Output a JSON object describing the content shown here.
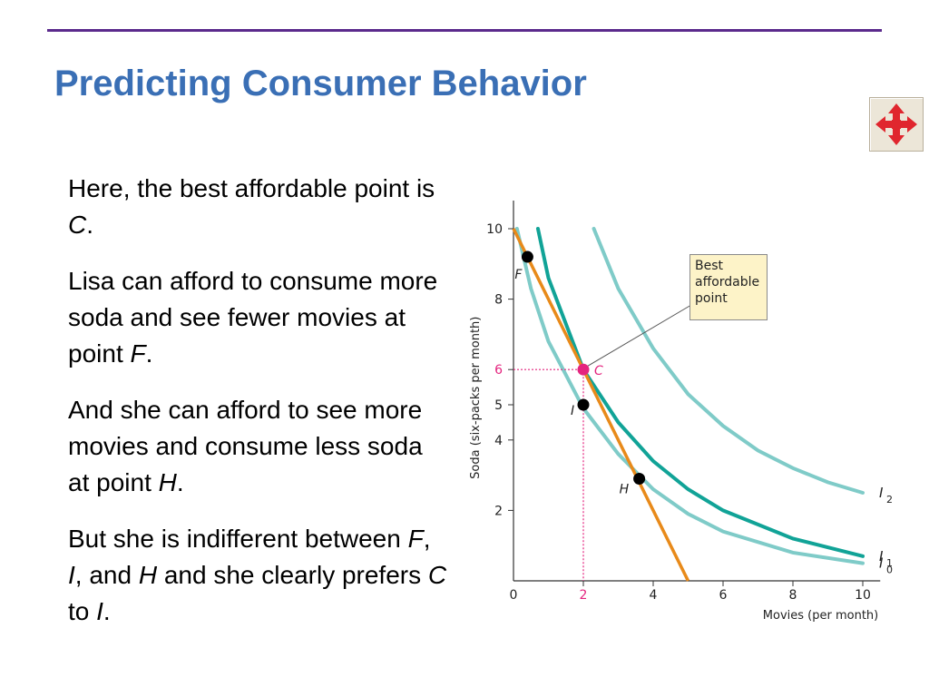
{
  "slide": {
    "title": "Predicting Consumer Behavior"
  },
  "nav": {
    "icon": "four-way-arrow-icon",
    "color": "#e0262e"
  },
  "text": {
    "p1": {
      "t1": "Here, the best affordable point is ",
      "c": "C",
      "t2": "."
    },
    "p2": {
      "t1": "Lisa can afford to consume more soda and see fewer movies at point ",
      "f": "F",
      "t2": "."
    },
    "p3": {
      "t1": "And she can afford to see more movies and consume less soda at point ",
      "h": "H",
      "t2": "."
    },
    "p4": {
      "t1": "But she is indifferent between ",
      "f": "F",
      "s1": ", ",
      "i": "I",
      "s2": ", and ",
      "h": "H",
      "t2": " and she clearly prefers ",
      "c": "C",
      "t3": " to ",
      "i2": "I",
      "t4": "."
    }
  },
  "chart_data": {
    "type": "line",
    "xlabel": "Movies (per month)",
    "ylabel": "Soda (six-packs per month)",
    "xlim": [
      0,
      10.5
    ],
    "ylim": [
      0,
      10.8
    ],
    "x_ticks": [
      0,
      2,
      4,
      6,
      8,
      10
    ],
    "x_tick_labels": [
      "0",
      "2",
      "4",
      "6",
      "8",
      "10"
    ],
    "y_ticks": [
      2,
      4,
      5,
      6,
      8,
      10
    ],
    "y_tick_labels": [
      "2",
      "4",
      "5",
      "6",
      "8",
      "10"
    ],
    "highlight_x_tick": "2",
    "highlight_y_tick": "6",
    "budget_line": {
      "points": [
        [
          0,
          10
        ],
        [
          5,
          0
        ]
      ],
      "color": "#e88a1a"
    },
    "series": [
      {
        "name": "I",
        "label_sub": "0",
        "color": "#7fcbc8",
        "points": [
          [
            0.1,
            10.0
          ],
          [
            0.5,
            8.3
          ],
          [
            1.0,
            6.8
          ],
          [
            2.0,
            4.9
          ],
          [
            3.0,
            3.6
          ],
          [
            4.0,
            2.6
          ],
          [
            5.0,
            1.9
          ],
          [
            6.0,
            1.4
          ],
          [
            8.0,
            0.8
          ],
          [
            10.0,
            0.5
          ]
        ]
      },
      {
        "name": "I",
        "label_sub": "1",
        "color": "#11a397",
        "points": [
          [
            0.7,
            10.0
          ],
          [
            1.0,
            8.6
          ],
          [
            2.0,
            6.0
          ],
          [
            3.0,
            4.5
          ],
          [
            4.0,
            3.4
          ],
          [
            5.0,
            2.6
          ],
          [
            6.0,
            2.0
          ],
          [
            8.0,
            1.2
          ],
          [
            10.0,
            0.7
          ]
        ]
      },
      {
        "name": "I",
        "label_sub": "2",
        "color": "#7fcbc8",
        "points": [
          [
            2.3,
            10.0
          ],
          [
            3.0,
            8.3
          ],
          [
            4.0,
            6.6
          ],
          [
            5.0,
            5.3
          ],
          [
            6.0,
            4.4
          ],
          [
            7.0,
            3.7
          ],
          [
            8.0,
            3.2
          ],
          [
            9.0,
            2.8
          ],
          [
            10.0,
            2.5
          ]
        ]
      }
    ],
    "points": [
      {
        "label": "F",
        "x": 0.4,
        "y": 9.2,
        "color": "#000000"
      },
      {
        "label": "I",
        "x": 2.0,
        "y": 5.0,
        "color": "#000000"
      },
      {
        "label": "H",
        "x": 3.6,
        "y": 2.9,
        "color": "#000000"
      },
      {
        "label": "C",
        "x": 2.0,
        "y": 6.0,
        "color": "#e4257f"
      }
    ],
    "guide_color": "#e4257f",
    "annotation": "Best affordable point"
  }
}
